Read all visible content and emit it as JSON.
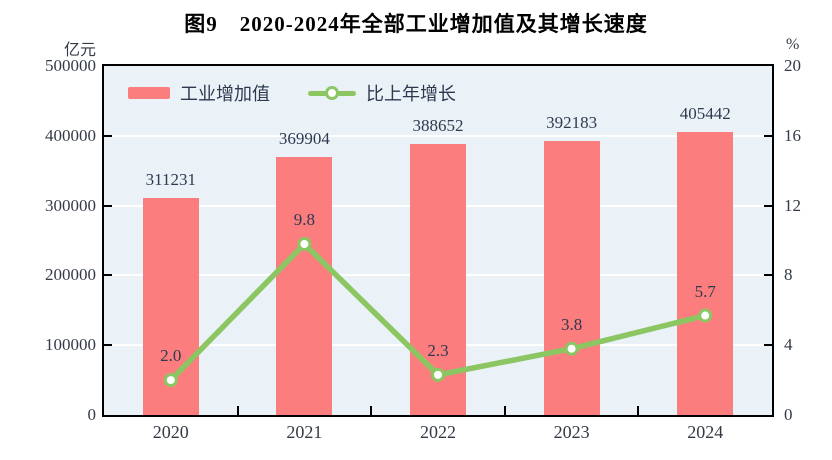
{
  "chart_data": {
    "type": "combo",
    "title": "图9　2020-2024年全部工业增加值及其增长速度",
    "categories": [
      "2020",
      "2021",
      "2022",
      "2023",
      "2024"
    ],
    "series": [
      {
        "name": "工业增加值",
        "type": "bar",
        "axis": "left",
        "values": [
          311231,
          369904,
          388652,
          392183,
          405442
        ],
        "labels": [
          "311231",
          "369904",
          "388652",
          "392183",
          "405442"
        ],
        "color": "#fb7d7d"
      },
      {
        "name": "比上年增长",
        "type": "line",
        "axis": "right",
        "values": [
          2.0,
          9.8,
          2.3,
          3.8,
          5.7
        ],
        "labels": [
          "2.0",
          "9.8",
          "2.3",
          "3.8",
          "5.7"
        ],
        "color": "#8cc663",
        "marker": "circle-white-fill"
      }
    ],
    "left_axis": {
      "unit": "亿元",
      "range": [
        0,
        500000
      ],
      "ticks": [
        0,
        100000,
        200000,
        300000,
        400000,
        500000
      ],
      "tick_labels": [
        "0",
        "100000",
        "200000",
        "300000",
        "400000",
        "500000"
      ]
    },
    "right_axis": {
      "unit": "%",
      "range": [
        0,
        20
      ],
      "ticks": [
        0,
        4,
        8,
        12,
        16,
        20
      ],
      "tick_labels": [
        "0",
        "4",
        "8",
        "12",
        "16",
        "20"
      ]
    },
    "legend_position": "top-left-inside",
    "grid": "horizontal"
  },
  "colors": {
    "bar_fill": "#fb7d7d",
    "line_stroke": "#8cc663",
    "marker_fill": "#ffffff",
    "plot_background": "#ebf2f7",
    "gridline": "#ffffff",
    "plot_border": "#000000",
    "axis_text": "#333a47",
    "data_label_text": "#2e3950",
    "title_text": "#000000"
  }
}
